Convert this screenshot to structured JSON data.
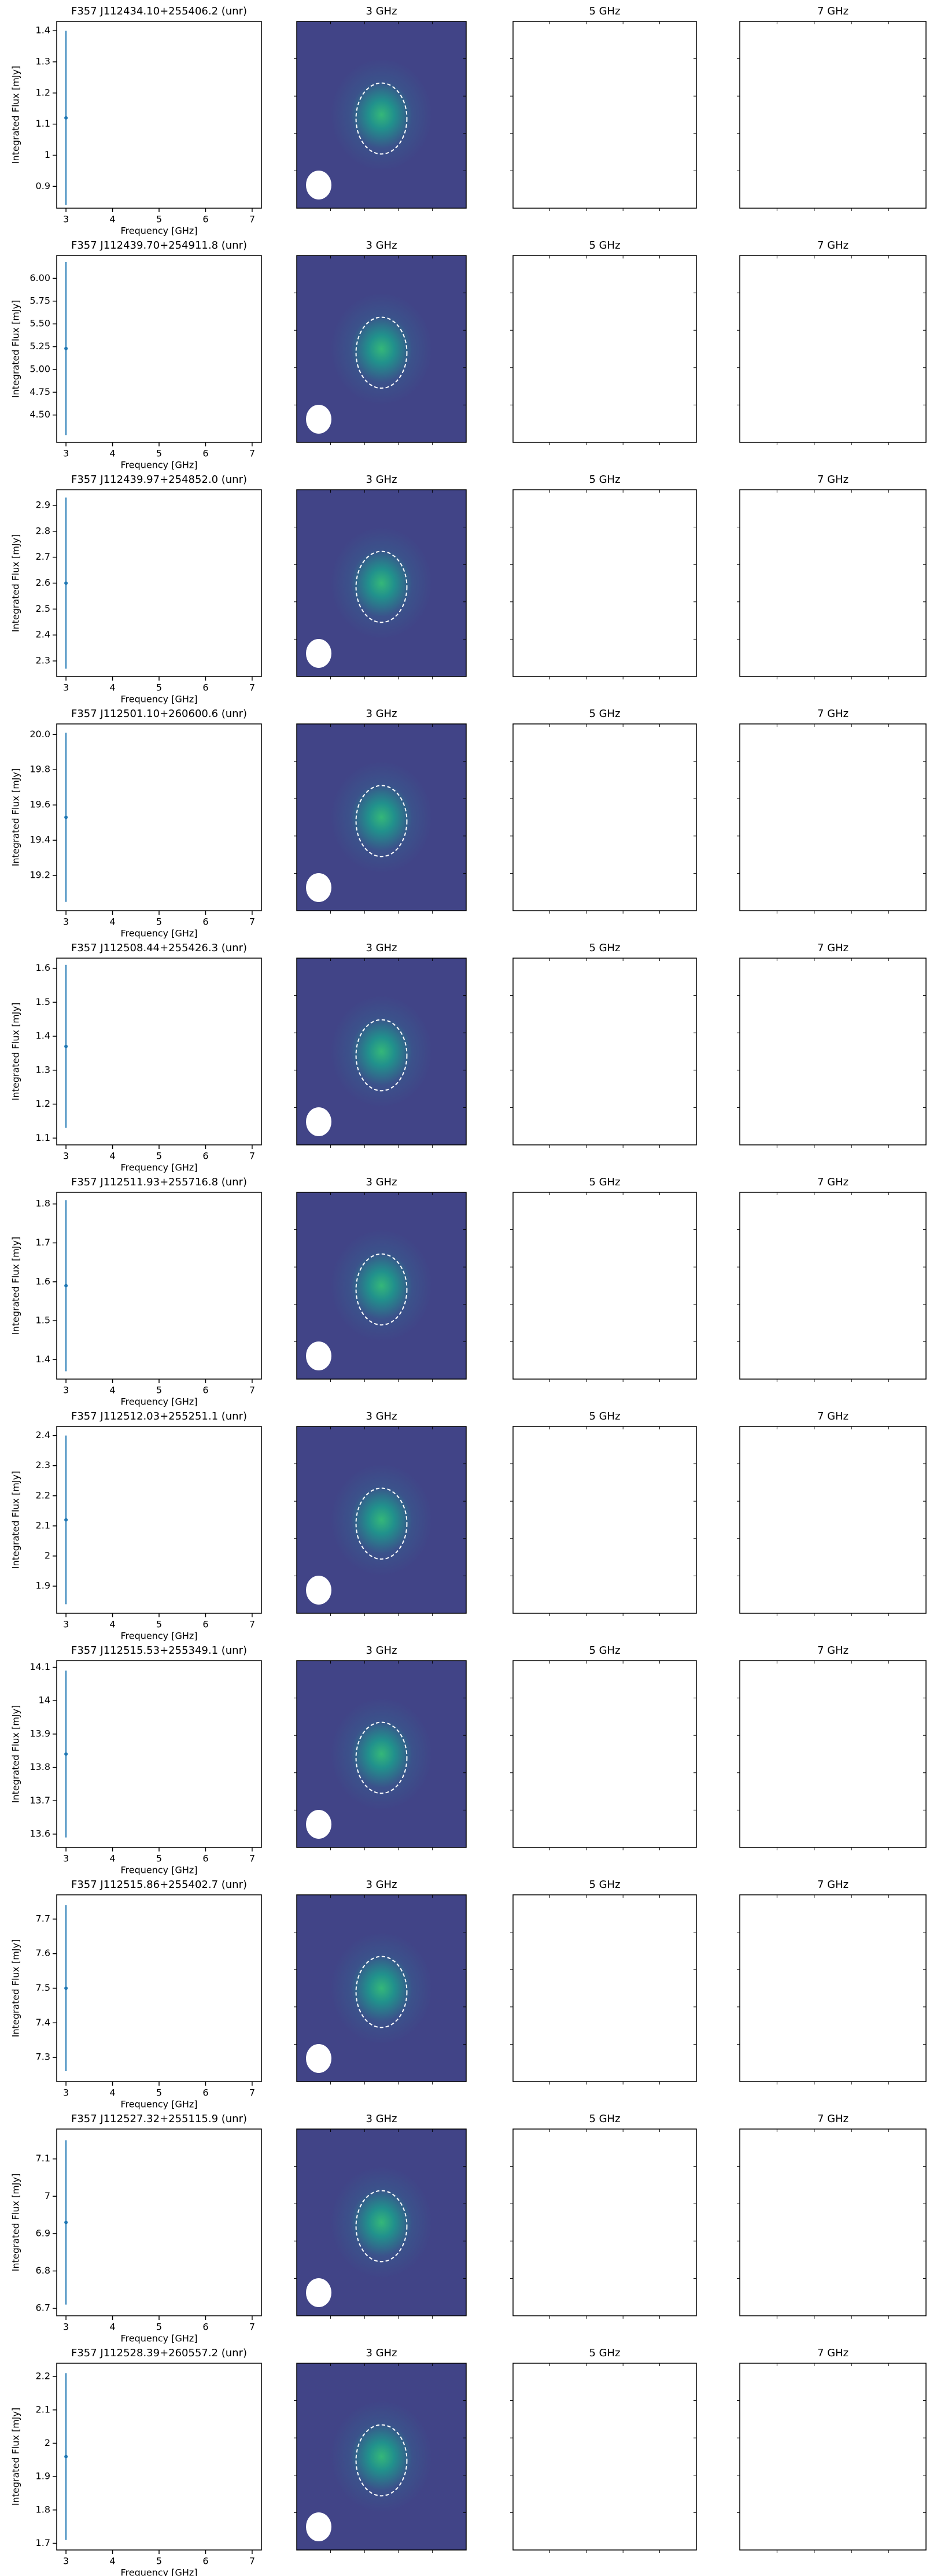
{
  "panel_titles": [
    "3 GHz",
    "5 GHz",
    "7 GHz"
  ],
  "chart_data": [
    {
      "type": "errorbar",
      "title": "F357 J112434.10+255406.2 (unr)",
      "x_label": "Frequency [GHz]",
      "y_label": "Integrated Flux [mJy]",
      "color": "#1f77b4",
      "x": [
        3
      ],
      "values": [
        1.12
      ],
      "errors": [
        0.28
      ],
      "xlim": [
        2.8,
        7.2
      ],
      "xticks": [
        3,
        4,
        5,
        6,
        7
      ],
      "ylim": [
        0.83,
        1.43
      ],
      "yticks": [
        0.9,
        1.0,
        1.1,
        1.2,
        1.3,
        1.4
      ]
    },
    {
      "type": "errorbar",
      "title": "F357 J112439.70+254911.8 (unr)",
      "x_label": "Frequency [GHz]",
      "y_label": "Integrated Flux [mJy]",
      "color": "#1f77b4",
      "x": [
        3
      ],
      "values": [
        5.23
      ],
      "errors": [
        0.95
      ],
      "xlim": [
        2.8,
        7.2
      ],
      "xticks": [
        3,
        4,
        5,
        6,
        7
      ],
      "ylim": [
        4.2,
        6.25
      ],
      "yticks": [
        {
          "value": 4.5,
          "label": "4.50"
        },
        4.75,
        {
          "value": 5,
          "label": "5.00"
        },
        5.25,
        {
          "value": 5.5,
          "label": "5.50"
        },
        5.75,
        {
          "value": 6,
          "label": "6.00"
        }
      ]
    },
    {
      "type": "errorbar",
      "title": "F357 J112439.97+254852.0 (unr)",
      "x_label": "Frequency [GHz]",
      "y_label": "Integrated Flux [mJy]",
      "color": "#1f77b4",
      "x": [
        3
      ],
      "values": [
        2.6
      ],
      "errors": [
        0.33
      ],
      "xlim": [
        2.8,
        7.2
      ],
      "xticks": [
        3,
        4,
        5,
        6,
        7
      ],
      "ylim": [
        2.24,
        2.96
      ],
      "yticks": [
        2.3,
        2.4,
        2.5,
        2.6,
        2.7,
        2.8,
        2.9
      ]
    },
    {
      "type": "errorbar",
      "title": "F357 J112501.10+260600.6 (unr)",
      "x_label": "Frequency [GHz]",
      "y_label": "Integrated Flux [mJy]",
      "color": "#1f77b4",
      "x": [
        3
      ],
      "values": [
        19.53
      ],
      "errors": [
        0.48
      ],
      "xlim": [
        2.8,
        7.2
      ],
      "xticks": [
        3,
        4,
        5,
        6,
        7
      ],
      "ylim": [
        19.0,
        20.06
      ],
      "yticks": [
        19.2,
        19.4,
        19.6,
        19.8,
        {
          "value": 20,
          "label": "20.0"
        }
      ]
    },
    {
      "type": "errorbar",
      "title": "F357 J112508.44+255426.3 (unr)",
      "x_label": "Frequency [GHz]",
      "y_label": "Integrated Flux [mJy]",
      "color": "#1f77b4",
      "x": [
        3
      ],
      "values": [
        1.37
      ],
      "errors": [
        0.24
      ],
      "xlim": [
        2.8,
        7.2
      ],
      "xticks": [
        3,
        4,
        5,
        6,
        7
      ],
      "ylim": [
        1.08,
        1.63
      ],
      "yticks": [
        1.1,
        1.2,
        1.3,
        1.4,
        1.5,
        1.6
      ]
    },
    {
      "type": "errorbar",
      "title": "F357 J112511.93+255716.8 (unr)",
      "x_label": "Frequency [GHz]",
      "y_label": "Integrated Flux [mJy]",
      "color": "#1f77b4",
      "x": [
        3
      ],
      "values": [
        1.59
      ],
      "errors": [
        0.22
      ],
      "xlim": [
        2.8,
        7.2
      ],
      "xticks": [
        3,
        4,
        5,
        6,
        7
      ],
      "ylim": [
        1.35,
        1.83
      ],
      "yticks": [
        1.4,
        1.5,
        1.6,
        1.7,
        1.8
      ]
    },
    {
      "type": "errorbar",
      "title": "F357 J112512.03+255251.1 (unr)",
      "x_label": "Frequency [GHz]",
      "y_label": "Integrated Flux [mJy]",
      "color": "#1f77b4",
      "x": [
        3
      ],
      "values": [
        2.12
      ],
      "errors": [
        0.28
      ],
      "xlim": [
        2.8,
        7.2
      ],
      "xticks": [
        3,
        4,
        5,
        6,
        7
      ],
      "ylim": [
        1.81,
        2.43
      ],
      "yticks": [
        1.9,
        2.0,
        2.1,
        2.2,
        2.3,
        2.4
      ]
    },
    {
      "type": "errorbar",
      "title": "F357 J112515.53+255349.1 (unr)",
      "x_label": "Frequency [GHz]",
      "y_label": "Integrated Flux [mJy]",
      "color": "#1f77b4",
      "x": [
        3
      ],
      "values": [
        13.84
      ],
      "errors": [
        0.25
      ],
      "xlim": [
        2.8,
        7.2
      ],
      "xticks": [
        3,
        4,
        5,
        6,
        7
      ],
      "ylim": [
        13.56,
        14.12
      ],
      "yticks": [
        13.6,
        13.7,
        13.8,
        13.9,
        14.0,
        14.1
      ]
    },
    {
      "type": "errorbar",
      "title": "F357 J112515.86+255402.7 (unr)",
      "x_label": "Frequency [GHz]",
      "y_label": "Integrated Flux [mJy]",
      "color": "#1f77b4",
      "x": [
        3
      ],
      "values": [
        7.5
      ],
      "errors": [
        0.24
      ],
      "xlim": [
        2.8,
        7.2
      ],
      "xticks": [
        3,
        4,
        5,
        6,
        7
      ],
      "ylim": [
        7.23,
        7.77
      ],
      "yticks": [
        7.3,
        7.4,
        7.5,
        7.6,
        7.7
      ]
    },
    {
      "type": "errorbar",
      "title": "F357 J112527.32+255115.9 (unr)",
      "x_label": "Frequency [GHz]",
      "y_label": "Integrated Flux [mJy]",
      "color": "#1f77b4",
      "x": [
        3
      ],
      "values": [
        6.93
      ],
      "errors": [
        0.22
      ],
      "xlim": [
        2.8,
        7.2
      ],
      "xticks": [
        3,
        4,
        5,
        6,
        7
      ],
      "ylim": [
        6.68,
        7.18
      ],
      "yticks": [
        6.7,
        6.8,
        6.9,
        7.0,
        7.1
      ]
    },
    {
      "type": "errorbar",
      "title": "F357 J112528.39+260557.2 (unr)",
      "x_label": "Frequency [GHz]",
      "y_label": "Integrated Flux [mJy]",
      "color": "#1f77b4",
      "x": [
        3
      ],
      "values": [
        1.96
      ],
      "errors": [
        0.25
      ],
      "xlim": [
        2.8,
        7.2
      ],
      "xticks": [
        3,
        4,
        5,
        6,
        7
      ],
      "ylim": [
        1.68,
        2.24
      ],
      "yticks": [
        1.7,
        1.8,
        1.9,
        2.0,
        2.1,
        2.2
      ]
    }
  ]
}
